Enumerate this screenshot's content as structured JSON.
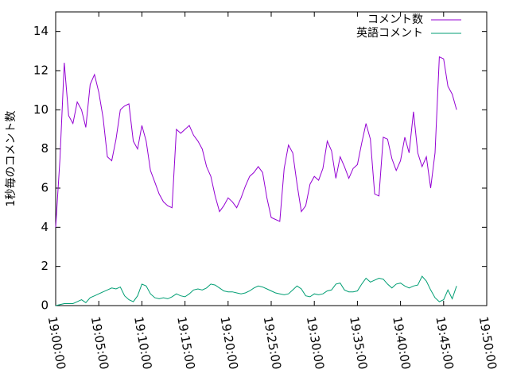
{
  "chart_data": {
    "type": "line",
    "ylabel": "1秒毎のコメント数",
    "x": [
      "19:00:00",
      "19:00:30",
      "19:01:00",
      "19:01:30",
      "19:02:00",
      "19:02:30",
      "19:03:00",
      "19:03:30",
      "19:04:00",
      "19:04:30",
      "19:05:00",
      "19:05:30",
      "19:06:00",
      "19:06:30",
      "19:07:00",
      "19:07:30",
      "19:08:00",
      "19:08:30",
      "19:09:00",
      "19:09:30",
      "19:10:00",
      "19:10:30",
      "19:11:00",
      "19:11:30",
      "19:12:00",
      "19:12:30",
      "19:13:00",
      "19:13:30",
      "19:14:00",
      "19:14:30",
      "19:15:00",
      "19:15:30",
      "19:16:00",
      "19:16:30",
      "19:17:00",
      "19:17:30",
      "19:18:00",
      "19:18:30",
      "19:19:00",
      "19:19:30",
      "19:20:00",
      "19:20:30",
      "19:21:00",
      "19:21:30",
      "19:22:00",
      "19:22:30",
      "19:23:00",
      "19:23:30",
      "19:24:00",
      "19:24:30",
      "19:25:00",
      "19:25:30",
      "19:26:00",
      "19:26:30",
      "19:27:00",
      "19:27:30",
      "19:28:00",
      "19:28:30",
      "19:29:00",
      "19:29:30",
      "19:30:00",
      "19:30:30",
      "19:31:00",
      "19:31:30",
      "19:32:00",
      "19:32:30",
      "19:33:00",
      "19:33:30",
      "19:34:00",
      "19:34:30",
      "19:35:00",
      "19:35:30",
      "19:36:00",
      "19:36:30",
      "19:37:00",
      "19:37:30",
      "19:38:00",
      "19:38:30",
      "19:39:00",
      "19:39:30",
      "19:40:00",
      "19:40:30",
      "19:41:00",
      "19:41:30",
      "19:42:00",
      "19:42:30",
      "19:43:00",
      "19:43:30",
      "19:44:00",
      "19:44:30",
      "19:45:00",
      "19:45:30",
      "19:46:00",
      "19:46:30"
    ],
    "series": [
      {
        "name": "コメント数",
        "color": "#9400d3",
        "values": [
          4.0,
          7.5,
          12.4,
          9.7,
          9.3,
          10.4,
          10.0,
          9.1,
          11.3,
          11.8,
          10.9,
          9.6,
          7.6,
          7.4,
          8.5,
          10.0,
          10.2,
          10.3,
          8.4,
          8.0,
          9.2,
          8.4,
          6.9,
          6.3,
          5.7,
          5.3,
          5.1,
          5.0,
          9.0,
          8.8,
          9.0,
          9.2,
          8.7,
          8.4,
          8.0,
          7.1,
          6.6,
          5.6,
          4.8,
          5.1,
          5.5,
          5.3,
          5.0,
          5.5,
          6.1,
          6.6,
          6.8,
          7.1,
          6.8,
          5.5,
          4.5,
          4.4,
          4.3,
          7.0,
          8.2,
          7.8,
          6.2,
          4.8,
          5.1,
          6.2,
          6.6,
          6.4,
          7.0,
          8.4,
          7.9,
          6.5,
          7.6,
          7.1,
          6.5,
          7.0,
          7.2,
          8.3,
          9.3,
          8.5,
          5.7,
          5.6,
          8.6,
          8.5,
          7.5,
          6.9,
          7.4,
          8.6,
          7.8,
          9.9,
          7.8,
          7.1,
          7.6,
          6.0,
          7.8,
          12.7,
          12.6,
          11.2,
          10.8,
          10.0
        ]
      },
      {
        "name": "英語コメント",
        "color": "#009e73",
        "values": [
          0,
          0.05,
          0.1,
          0.1,
          0.1,
          0.2,
          0.3,
          0.15,
          0.4,
          0.5,
          0.6,
          0.7,
          0.8,
          0.9,
          0.85,
          0.95,
          0.5,
          0.3,
          0.2,
          0.5,
          1.1,
          1.0,
          0.6,
          0.4,
          0.35,
          0.4,
          0.35,
          0.45,
          0.6,
          0.5,
          0.45,
          0.6,
          0.8,
          0.85,
          0.8,
          0.9,
          1.1,
          1.05,
          0.9,
          0.75,
          0.7,
          0.7,
          0.65,
          0.6,
          0.65,
          0.75,
          0.9,
          1.0,
          0.95,
          0.85,
          0.75,
          0.65,
          0.6,
          0.55,
          0.6,
          0.8,
          1.0,
          0.85,
          0.5,
          0.45,
          0.6,
          0.55,
          0.6,
          0.75,
          0.8,
          1.1,
          1.15,
          0.8,
          0.7,
          0.7,
          0.75,
          1.1,
          1.4,
          1.2,
          1.3,
          1.4,
          1.35,
          1.1,
          0.9,
          1.1,
          1.15,
          1.0,
          0.9,
          1.0,
          1.05,
          1.5,
          1.25,
          0.8,
          0.4,
          0.2,
          0.3,
          0.8,
          0.35,
          1.0
        ]
      }
    ],
    "xlim": [
      "19:00:00",
      "19:50:00"
    ],
    "xticks": [
      "19:00:00",
      "19:05:00",
      "19:10:00",
      "19:15:00",
      "19:20:00",
      "19:25:00",
      "19:30:00",
      "19:35:00",
      "19:40:00",
      "19:45:00",
      "19:50:00"
    ],
    "ylim": [
      0,
      15
    ],
    "yticks": [
      0,
      2,
      4,
      6,
      8,
      10,
      12,
      14
    ],
    "legend": "top-right"
  }
}
